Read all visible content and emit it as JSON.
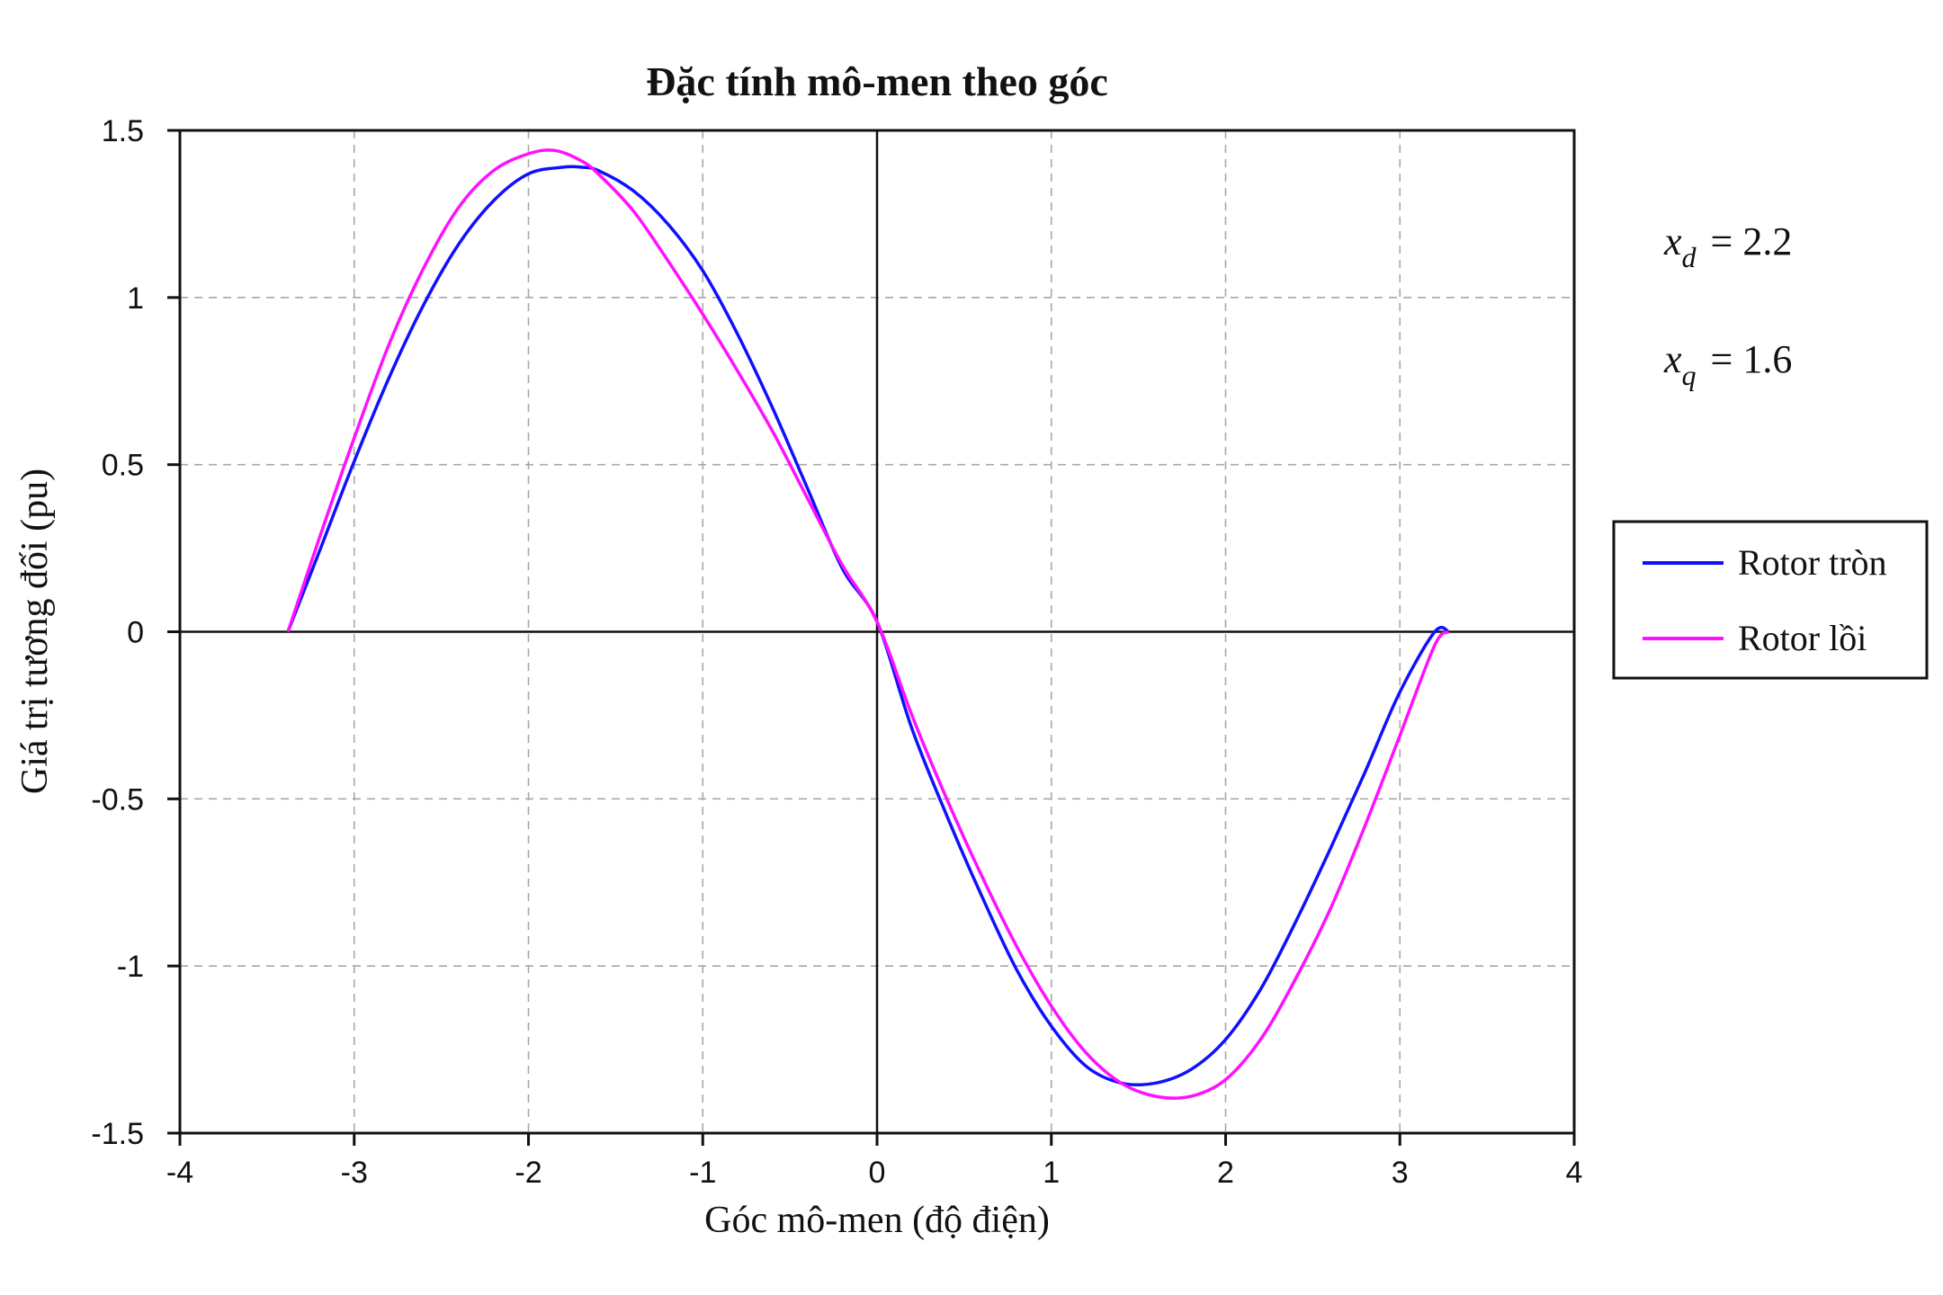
{
  "chart_data": {
    "type": "line",
    "title": "Đặc tính mô-men theo góc",
    "xlabel": "Góc mô-men (độ điện)",
    "ylabel": "Giá trị tương đối (pu)",
    "xlim": [
      -4,
      4
    ],
    "ylim": [
      -1.5,
      1.5
    ],
    "xticks": [
      -4,
      -3,
      -2,
      -1,
      0,
      1,
      2,
      3,
      4
    ],
    "xtick_labels": [
      "-4",
      "-3",
      "-2",
      "-1",
      "0",
      "1",
      "2",
      "3",
      "4"
    ],
    "yticks": [
      -1.5,
      -1,
      -0.5,
      0,
      0.5,
      1,
      1.5
    ],
    "ytick_labels": [
      "-1.5",
      "-1",
      "-0.5",
      "0",
      "0.5",
      "1",
      "1.5"
    ],
    "grid": true,
    "legend_position": "right",
    "series": [
      {
        "name": "Rotor tròn",
        "color": "#1010ff",
        "x": [
          -3.38,
          -3.2,
          -3.0,
          -2.8,
          -2.6,
          -2.4,
          -2.2,
          -2.0,
          -1.8,
          -1.7,
          -1.6,
          -1.4,
          -1.2,
          -1.0,
          -0.8,
          -0.6,
          -0.4,
          -0.2,
          0.0,
          0.2,
          0.4,
          0.6,
          0.8,
          1.0,
          1.2,
          1.4,
          1.6,
          1.8,
          2.0,
          2.2,
          2.4,
          2.6,
          2.8,
          3.0,
          3.2,
          3.28
        ],
        "y": [
          0.0,
          0.24,
          0.51,
          0.76,
          0.98,
          1.16,
          1.29,
          1.37,
          1.39,
          1.39,
          1.38,
          1.32,
          1.22,
          1.08,
          0.89,
          0.67,
          0.43,
          0.19,
          0.03,
          -0.29,
          -0.55,
          -0.79,
          -1.01,
          -1.18,
          -1.3,
          -1.35,
          -1.35,
          -1.31,
          -1.22,
          -1.07,
          -0.87,
          -0.65,
          -0.42,
          -0.18,
          0.0,
          0.0
        ]
      },
      {
        "name": "Rotor lồi",
        "color": "#ff10ff",
        "x": [
          -3.38,
          -3.2,
          -3.0,
          -2.8,
          -2.6,
          -2.4,
          -2.2,
          -2.0,
          -1.85,
          -1.7,
          -1.6,
          -1.4,
          -1.2,
          -1.0,
          -0.8,
          -0.6,
          -0.4,
          -0.2,
          0.0,
          0.2,
          0.4,
          0.6,
          0.8,
          1.0,
          1.2,
          1.4,
          1.6,
          1.8,
          2.0,
          2.2,
          2.4,
          2.6,
          2.8,
          3.0,
          3.2,
          3.28
        ],
        "y": [
          0.0,
          0.28,
          0.58,
          0.86,
          1.09,
          1.27,
          1.38,
          1.43,
          1.44,
          1.41,
          1.37,
          1.26,
          1.11,
          0.95,
          0.78,
          0.6,
          0.4,
          0.2,
          0.03,
          -0.25,
          -0.5,
          -0.73,
          -0.94,
          -1.12,
          -1.26,
          -1.35,
          -1.39,
          -1.39,
          -1.34,
          -1.22,
          -1.04,
          -0.83,
          -0.58,
          -0.31,
          -0.04,
          0.0
        ]
      }
    ],
    "annotations": [
      {
        "var": "x",
        "sub": "d",
        "eq": "= 2.2"
      },
      {
        "var": "x",
        "sub": "q",
        "eq": "= 1.6"
      }
    ]
  }
}
